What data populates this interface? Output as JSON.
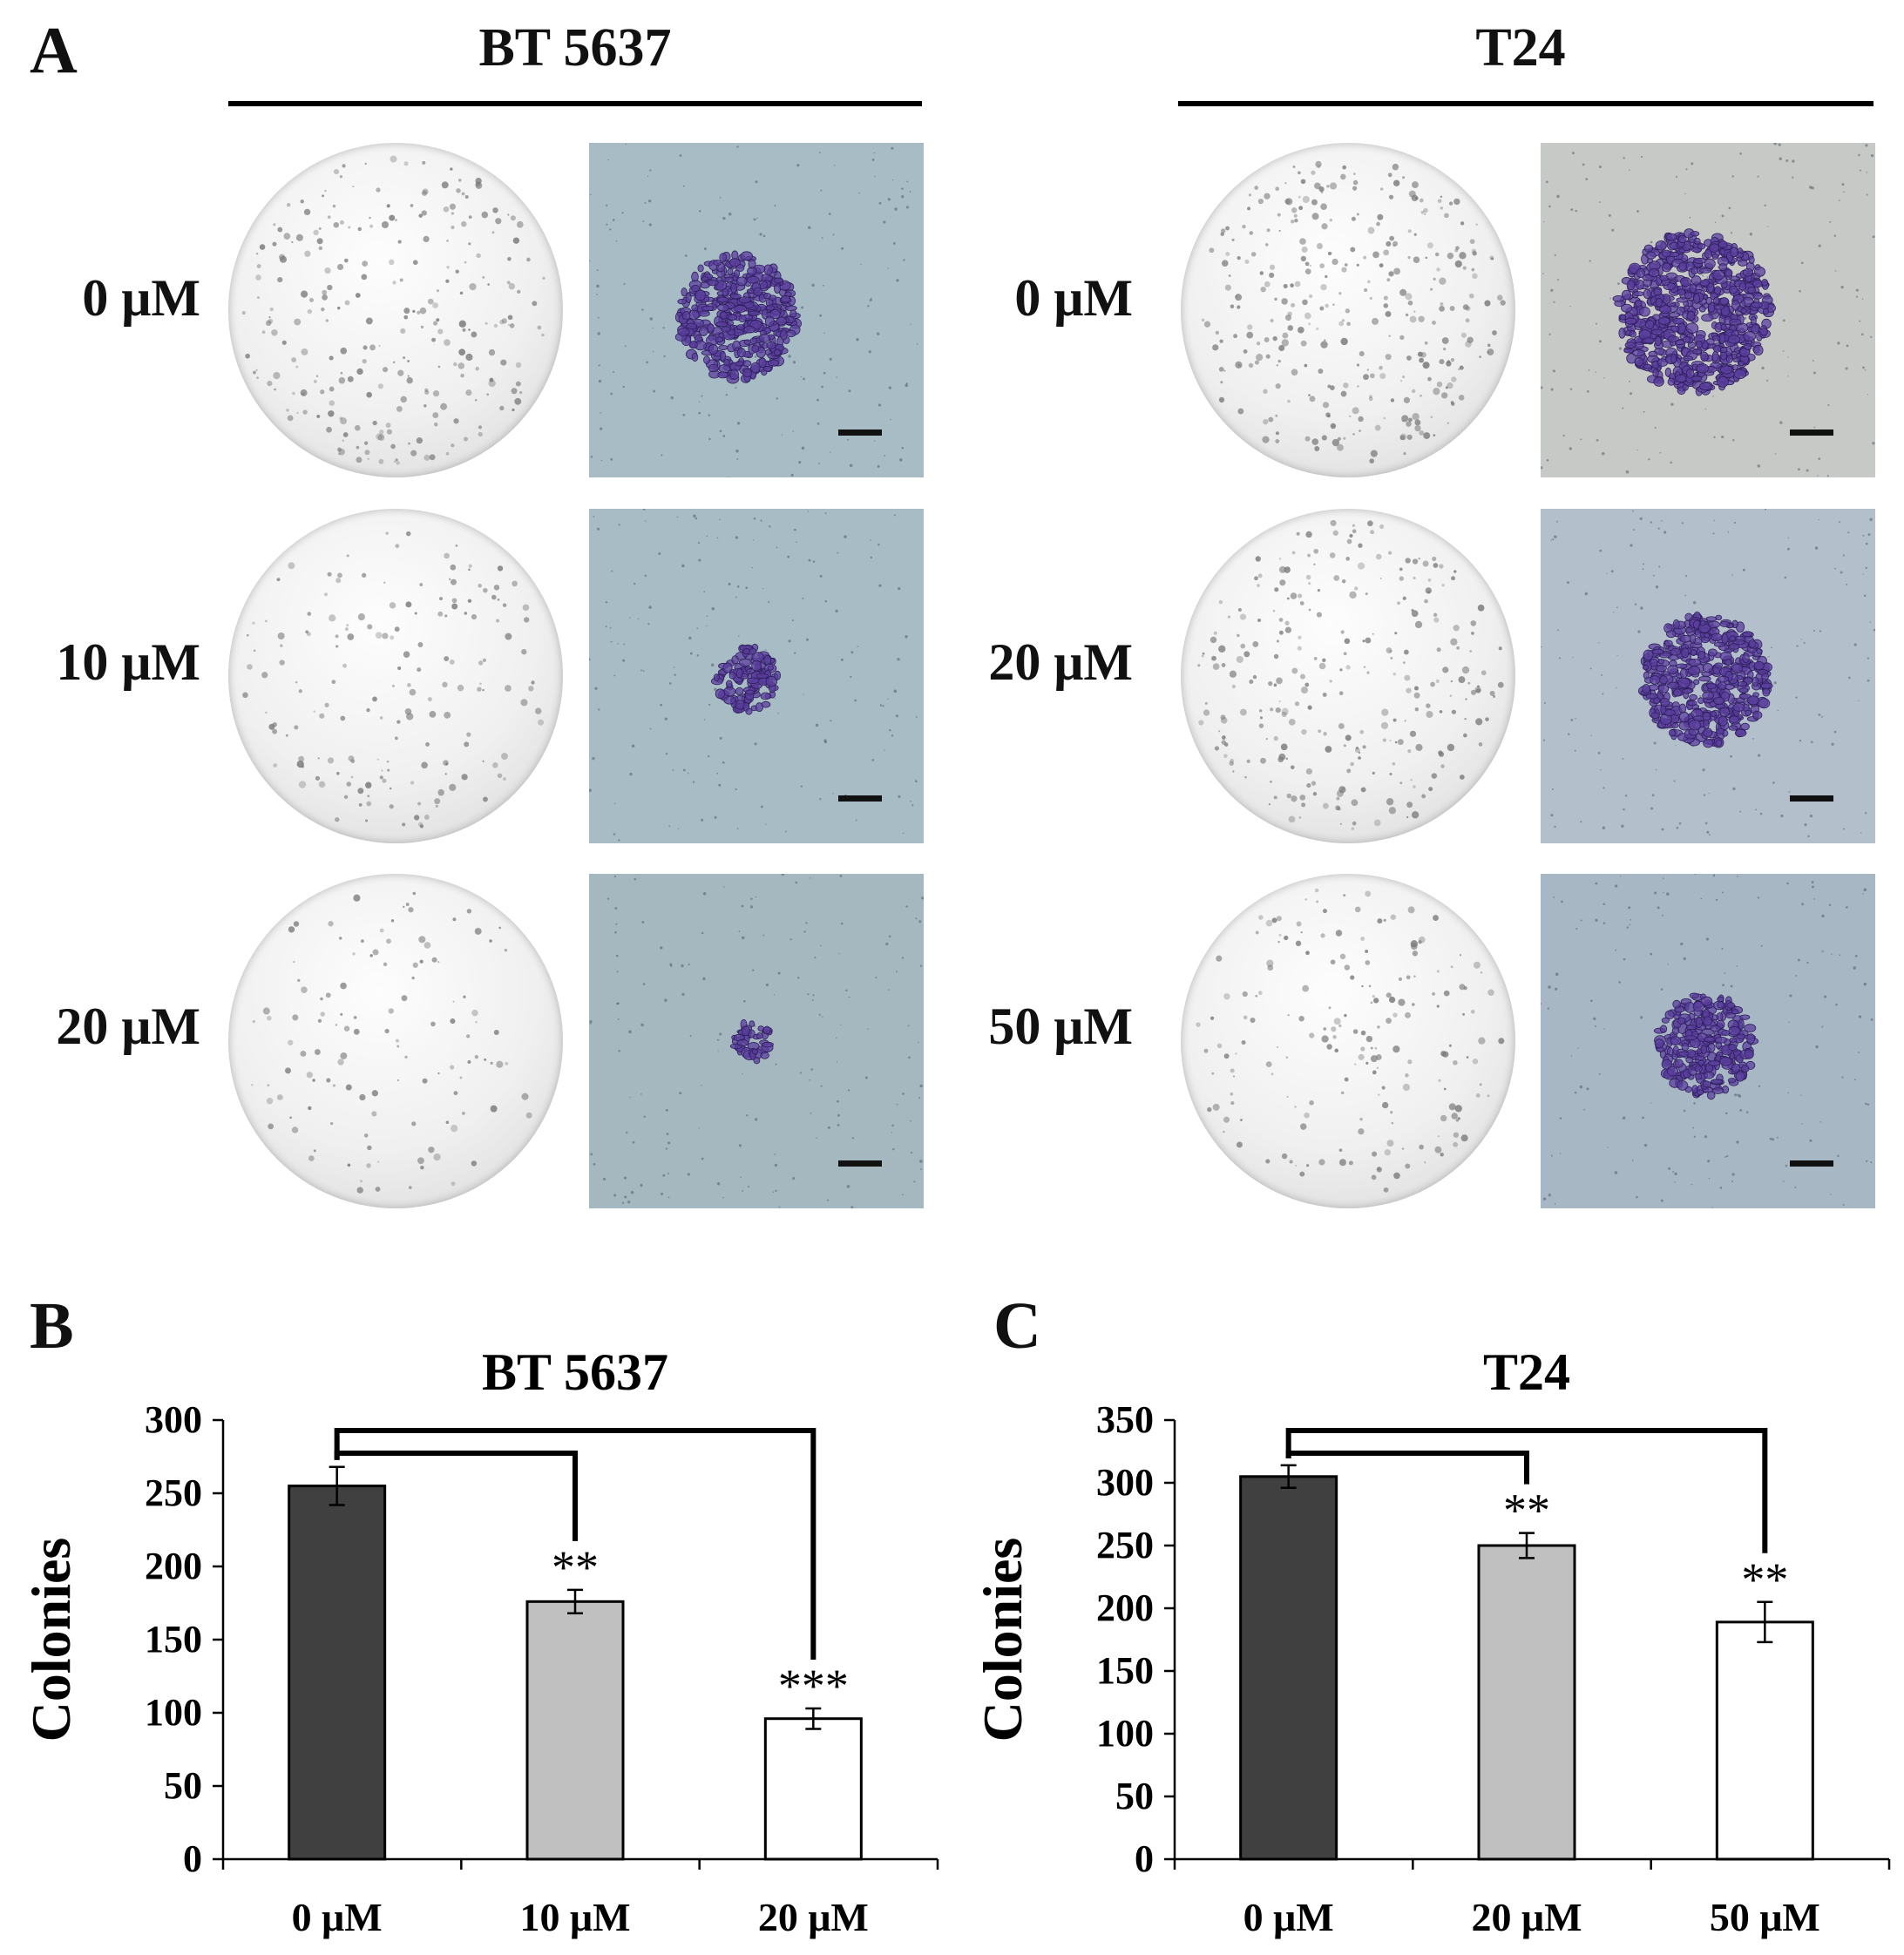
{
  "panel_labels": {
    "a": "A",
    "b": "B",
    "c": "C"
  },
  "figure_a": {
    "cell_lines": [
      {
        "name": "BT 5637",
        "doses": [
          "0 μM",
          "10 μM",
          "20 μM"
        ]
      },
      {
        "name": "T24",
        "doses": [
          "0 μM",
          "20 μM",
          "50 μM"
        ]
      }
    ],
    "stain_color": "#5b3f9e"
  },
  "chart_data": [
    {
      "type": "bar",
      "title": "BT 5637",
      "ylabel": "Colonies",
      "xlabel": "",
      "categories": [
        "0 μM",
        "10 μM",
        "20 μM"
      ],
      "values": [
        255,
        176,
        96
      ],
      "errors": [
        13,
        8,
        7
      ],
      "bar_colors": [
        "#404040",
        "#c0c0c0",
        "#ffffff"
      ],
      "ylim": [
        0,
        300
      ],
      "yticks": [
        0,
        50,
        100,
        150,
        200,
        250,
        300
      ],
      "significance": [
        {
          "from": 0,
          "to": 1,
          "label": "**"
        },
        {
          "from": 0,
          "to": 2,
          "label": "***"
        }
      ],
      "grid": false
    },
    {
      "type": "bar",
      "title": "T24",
      "ylabel": "Colonies",
      "xlabel": "",
      "categories": [
        "0 μM",
        "20 μM",
        "50 μM"
      ],
      "values": [
        305,
        250,
        189
      ],
      "errors": [
        9,
        10,
        16
      ],
      "bar_colors": [
        "#404040",
        "#c0c0c0",
        "#ffffff"
      ],
      "ylim": [
        0,
        350
      ],
      "yticks": [
        0,
        50,
        100,
        150,
        200,
        250,
        300,
        350
      ],
      "significance": [
        {
          "from": 0,
          "to": 1,
          "label": "**"
        },
        {
          "from": 0,
          "to": 2,
          "label": "**"
        }
      ],
      "grid": false
    }
  ]
}
